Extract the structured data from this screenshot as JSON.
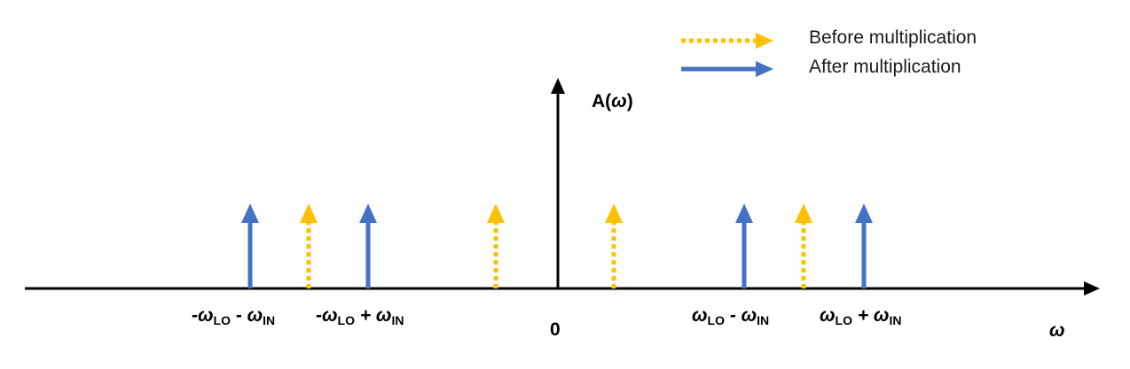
{
  "legend": {
    "before": {
      "label": "Before multiplication",
      "color": "#FFC000",
      "style": "dotted"
    },
    "after": {
      "label": "After multiplication",
      "color": "#4472C4",
      "style": "solid"
    }
  },
  "y_axis": {
    "label_main": "A(",
    "label_var": "ω",
    "label_close": ")"
  },
  "x_axis": {
    "label": "ω",
    "origin_label": "0"
  },
  "tick_labels": [
    {
      "id": "neg-sum",
      "prefix": "-ω",
      "sub1": "LO",
      "op": " - ω",
      "sub2": "IN"
    },
    {
      "id": "neg-diff",
      "prefix": "-ω",
      "sub1": "LO",
      "op": " + ω",
      "sub2": "IN"
    },
    {
      "id": "pos-diff",
      "prefix": "ω",
      "sub1": "LO",
      "op": " - ω",
      "sub2": "IN"
    },
    {
      "id": "pos-sum",
      "prefix": "ω",
      "sub1": "LO",
      "op": " + ω",
      "sub2": "IN"
    }
  ],
  "arrows": [
    {
      "kind": "after",
      "freq": "-ωLO - ωIN"
    },
    {
      "kind": "before",
      "freq": "-ωLO"
    },
    {
      "kind": "after",
      "freq": "-ωLO + ωIN"
    },
    {
      "kind": "before",
      "freq": "-ωIN"
    },
    {
      "kind": "before",
      "freq": "ωIN"
    },
    {
      "kind": "after",
      "freq": "ωLO - ωIN"
    },
    {
      "kind": "before",
      "freq": "ωLO"
    },
    {
      "kind": "after",
      "freq": "ωLO + ωIN"
    }
  ]
}
